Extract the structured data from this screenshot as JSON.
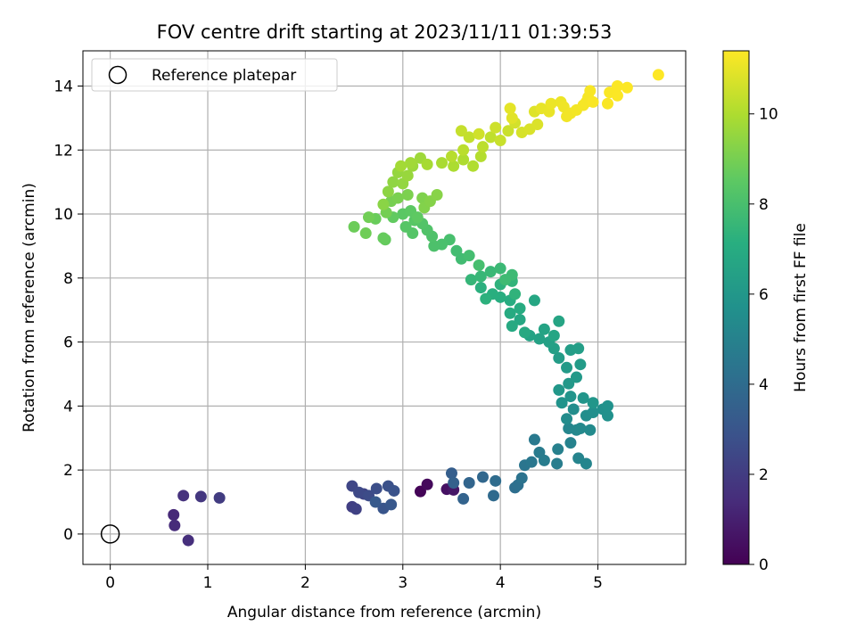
{
  "chart_data": {
    "type": "scatter",
    "title": "FOV centre drift starting at 2023/11/11 01:39:53",
    "xlabel": "Angular distance from reference (arcmin)",
    "ylabel": "Rotation from reference (arcmin)",
    "xlim": [
      -0.28,
      5.9
    ],
    "ylim": [
      -0.95,
      15.1
    ],
    "xticks": [
      0,
      1,
      2,
      3,
      4,
      5
    ],
    "yticks": [
      0,
      2,
      4,
      6,
      8,
      10,
      12,
      14
    ],
    "grid": true,
    "legend": {
      "placement": "top-left",
      "entries": [
        "Reference platepar"
      ]
    },
    "reference_point": {
      "x": 0,
      "y": 0
    },
    "colorbar": {
      "label": "Hours from first FF file",
      "range": [
        0,
        11.4
      ],
      "ticks": [
        0,
        2,
        4,
        6,
        8,
        10
      ],
      "colormap": "viridis"
    },
    "points": [
      [
        3.18,
        1.33,
        0.1
      ],
      [
        3.25,
        1.55,
        0.3
      ],
      [
        3.45,
        1.4,
        0.5
      ],
      [
        3.52,
        1.38,
        0.7
      ],
      [
        0.65,
        0.6,
        1.3
      ],
      [
        0.66,
        0.27,
        1.4
      ],
      [
        0.8,
        -0.2,
        1.5
      ],
      [
        0.75,
        1.2,
        1.6
      ],
      [
        0.93,
        1.17,
        1.8
      ],
      [
        1.12,
        1.13,
        2.0
      ],
      [
        2.48,
        0.85,
        2.1
      ],
      [
        2.52,
        0.78,
        2.2
      ],
      [
        2.6,
        1.25,
        2.3
      ],
      [
        2.48,
        1.5,
        2.4
      ],
      [
        2.55,
        1.3,
        2.5
      ],
      [
        2.65,
        1.2,
        2.6
      ],
      [
        2.73,
        1.42,
        2.7
      ],
      [
        2.85,
        1.5,
        2.8
      ],
      [
        2.91,
        1.35,
        2.9
      ],
      [
        2.8,
        0.8,
        3.0
      ],
      [
        2.88,
        0.92,
        3.1
      ],
      [
        2.72,
        1.0,
        3.2
      ],
      [
        3.5,
        1.9,
        3.4
      ],
      [
        3.52,
        1.6,
        3.5
      ],
      [
        3.62,
        1.1,
        3.6
      ],
      [
        3.68,
        1.6,
        3.7
      ],
      [
        3.82,
        1.78,
        3.8
      ],
      [
        3.93,
        1.2,
        3.9
      ],
      [
        3.95,
        1.66,
        4.0
      ],
      [
        4.15,
        1.45,
        4.1
      ],
      [
        4.18,
        1.53,
        4.2
      ],
      [
        4.22,
        1.75,
        4.3
      ],
      [
        4.25,
        2.15,
        4.4
      ],
      [
        4.32,
        2.25,
        4.5
      ],
      [
        4.35,
        2.95,
        4.6
      ],
      [
        4.4,
        2.55,
        4.7
      ],
      [
        4.45,
        2.3,
        4.75
      ],
      [
        4.58,
        2.2,
        4.8
      ],
      [
        4.59,
        2.65,
        4.9
      ],
      [
        4.72,
        2.85,
        5.0
      ],
      [
        4.8,
        2.37,
        5.1
      ],
      [
        4.88,
        2.2,
        5.15
      ],
      [
        4.7,
        3.3,
        5.2
      ],
      [
        4.78,
        3.25,
        5.3
      ],
      [
        4.82,
        3.3,
        5.35
      ],
      [
        4.92,
        3.25,
        5.4
      ],
      [
        4.68,
        3.6,
        5.45
      ],
      [
        4.75,
        3.9,
        5.5
      ],
      [
        4.88,
        3.7,
        5.55
      ],
      [
        4.95,
        3.8,
        5.6
      ],
      [
        5.05,
        3.9,
        5.65
      ],
      [
        5.1,
        3.7,
        5.7
      ],
      [
        5.1,
        4.0,
        5.75
      ],
      [
        4.63,
        4.1,
        5.8
      ],
      [
        4.72,
        4.3,
        5.85
      ],
      [
        4.85,
        4.25,
        5.9
      ],
      [
        4.95,
        4.1,
        5.95
      ],
      [
        4.6,
        4.5,
        6.0
      ],
      [
        4.7,
        4.7,
        6.05
      ],
      [
        4.78,
        4.9,
        6.1
      ],
      [
        4.68,
        5.2,
        6.15
      ],
      [
        4.82,
        5.3,
        6.2
      ],
      [
        4.6,
        5.5,
        6.25
      ],
      [
        4.72,
        5.75,
        6.3
      ],
      [
        4.8,
        5.8,
        6.35
      ],
      [
        4.55,
        5.8,
        6.4
      ],
      [
        4.5,
        6.0,
        6.45
      ],
      [
        4.4,
        6.1,
        6.5
      ],
      [
        4.3,
        6.2,
        6.55
      ],
      [
        4.45,
        6.4,
        6.6
      ],
      [
        4.6,
        6.65,
        6.65
      ],
      [
        4.55,
        6.2,
        6.7
      ],
      [
        4.35,
        7.3,
        6.75
      ],
      [
        4.2,
        6.7,
        6.8
      ],
      [
        4.25,
        6.3,
        6.85
      ],
      [
        4.12,
        6.5,
        6.9
      ],
      [
        4.1,
        6.9,
        6.95
      ],
      [
        4.2,
        7.05,
        7.0
      ],
      [
        4.1,
        7.3,
        7.05
      ],
      [
        4.0,
        7.4,
        7.1
      ],
      [
        3.92,
        7.5,
        7.15
      ],
      [
        3.8,
        7.7,
        7.2
      ],
      [
        3.85,
        7.35,
        7.25
      ],
      [
        4.0,
        7.8,
        7.3
      ],
      [
        4.15,
        7.5,
        7.35
      ],
      [
        4.12,
        7.9,
        7.4
      ],
      [
        3.7,
        7.95,
        7.5
      ],
      [
        3.8,
        8.05,
        7.55
      ],
      [
        3.9,
        8.2,
        7.6
      ],
      [
        4.0,
        8.3,
        7.65
      ],
      [
        4.12,
        8.1,
        7.7
      ],
      [
        4.05,
        7.95,
        7.75
      ],
      [
        3.6,
        8.6,
        7.8
      ],
      [
        3.55,
        8.85,
        7.85
      ],
      [
        3.68,
        8.7,
        7.9
      ],
      [
        3.78,
        8.4,
        7.95
      ],
      [
        3.48,
        9.2,
        8.0
      ],
      [
        3.4,
        9.05,
        8.05
      ],
      [
        3.32,
        9.0,
        8.1
      ],
      [
        3.3,
        9.3,
        8.15
      ],
      [
        3.25,
        9.5,
        8.2
      ],
      [
        3.2,
        9.7,
        8.25
      ],
      [
        3.1,
        9.4,
        8.3
      ],
      [
        3.03,
        9.6,
        8.35
      ],
      [
        3.12,
        9.8,
        8.4
      ],
      [
        3.0,
        10.0,
        8.45
      ],
      [
        3.08,
        10.1,
        8.5
      ],
      [
        3.15,
        9.9,
        8.55
      ],
      [
        2.9,
        9.9,
        8.6
      ],
      [
        2.82,
        9.2,
        8.65
      ],
      [
        2.8,
        9.25,
        8.7
      ],
      [
        2.72,
        9.85,
        8.75
      ],
      [
        2.5,
        9.6,
        8.8
      ],
      [
        2.62,
        9.4,
        8.85
      ],
      [
        2.65,
        9.9,
        8.9
      ],
      [
        2.83,
        10.05,
        8.95
      ],
      [
        2.88,
        10.4,
        9.0
      ],
      [
        2.95,
        10.5,
        9.05
      ],
      [
        3.05,
        10.6,
        9.1
      ],
      [
        3.2,
        10.5,
        9.15
      ],
      [
        3.22,
        10.2,
        9.2
      ],
      [
        3.28,
        10.4,
        9.25
      ],
      [
        3.35,
        10.6,
        9.3
      ],
      [
        2.8,
        10.3,
        9.35
      ],
      [
        2.85,
        10.7,
        9.4
      ],
      [
        2.9,
        11.0,
        9.45
      ],
      [
        3.0,
        10.95,
        9.5
      ],
      [
        2.95,
        11.3,
        9.55
      ],
      [
        3.05,
        11.2,
        9.6
      ],
      [
        3.1,
        11.5,
        9.65
      ],
      [
        3.18,
        11.75,
        9.7
      ],
      [
        3.08,
        11.6,
        9.75
      ],
      [
        2.98,
        11.5,
        9.8
      ],
      [
        3.25,
        11.55,
        9.85
      ],
      [
        3.4,
        11.6,
        9.9
      ],
      [
        3.52,
        11.5,
        9.95
      ],
      [
        3.62,
        11.7,
        10.0
      ],
      [
        3.72,
        11.5,
        10.05
      ],
      [
        3.8,
        11.8,
        10.1
      ],
      [
        3.5,
        11.8,
        10.15
      ],
      [
        3.62,
        12.0,
        10.2
      ],
      [
        3.82,
        12.1,
        10.25
      ],
      [
        3.9,
        12.4,
        10.3
      ],
      [
        3.68,
        12.4,
        10.35
      ],
      [
        3.6,
        12.6,
        10.4
      ],
      [
        4.0,
        12.3,
        10.45
      ],
      [
        4.08,
        12.6,
        10.5
      ],
      [
        3.95,
        12.7,
        10.55
      ],
      [
        3.78,
        12.5,
        10.6
      ],
      [
        4.15,
        12.85,
        10.65
      ],
      [
        4.22,
        12.55,
        10.7
      ],
      [
        4.3,
        12.65,
        10.75
      ],
      [
        4.38,
        12.8,
        10.8
      ],
      [
        4.35,
        13.2,
        10.85
      ],
      [
        4.12,
        13.0,
        10.9
      ],
      [
        4.1,
        13.3,
        10.95
      ],
      [
        4.42,
        13.3,
        11.0
      ],
      [
        4.5,
        13.2,
        11.05
      ],
      [
        4.52,
        13.45,
        11.1
      ],
      [
        4.62,
        13.5,
        11.12
      ],
      [
        4.65,
        13.35,
        11.15
      ],
      [
        4.68,
        13.05,
        11.18
      ],
      [
        4.72,
        13.15,
        11.2
      ],
      [
        4.78,
        13.25,
        11.22
      ],
      [
        4.85,
        13.4,
        11.25
      ],
      [
        4.88,
        13.5,
        11.27
      ],
      [
        4.9,
        13.65,
        11.28
      ],
      [
        4.92,
        13.85,
        11.3
      ],
      [
        4.95,
        13.5,
        11.32
      ],
      [
        5.1,
        13.45,
        11.33
      ],
      [
        5.12,
        13.8,
        11.35
      ],
      [
        5.2,
        13.7,
        11.36
      ],
      [
        5.2,
        14.0,
        11.37
      ],
      [
        5.3,
        13.95,
        11.38
      ],
      [
        5.62,
        14.35,
        11.4
      ]
    ]
  }
}
